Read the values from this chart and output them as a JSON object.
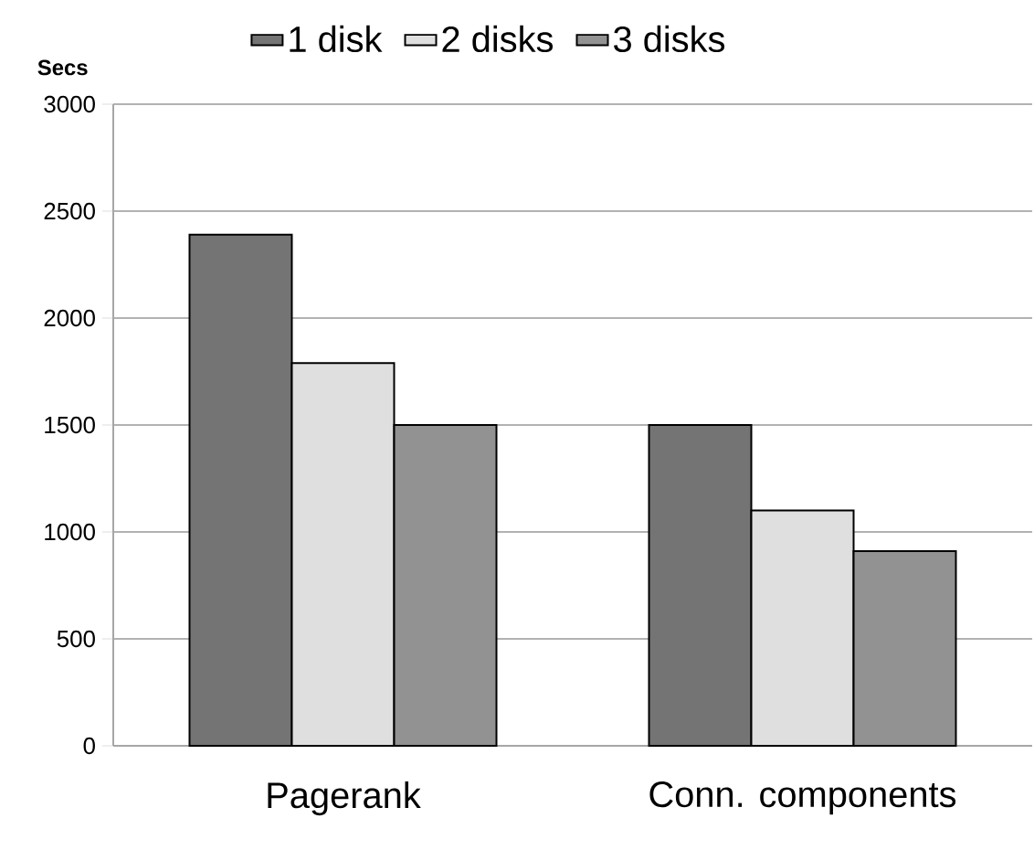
{
  "chart_data": {
    "type": "bar",
    "ylabel": "Secs",
    "categories": [
      "Pagerank",
      "Conn. components"
    ],
    "series": [
      {
        "name": "1  disk",
        "color": "#747474",
        "values": [
          2390,
          1500
        ]
      },
      {
        "name": "2 disks",
        "color": "#dfdfdf",
        "values": [
          1790,
          1100
        ]
      },
      {
        "name": "3 disks",
        "color": "#929292",
        "values": [
          1500,
          910
        ]
      }
    ],
    "ylim": [
      0,
      3000
    ],
    "yticks": [
      0,
      500,
      1000,
      1500,
      2000,
      2500,
      3000
    ],
    "grid": "y",
    "legend": "top"
  }
}
